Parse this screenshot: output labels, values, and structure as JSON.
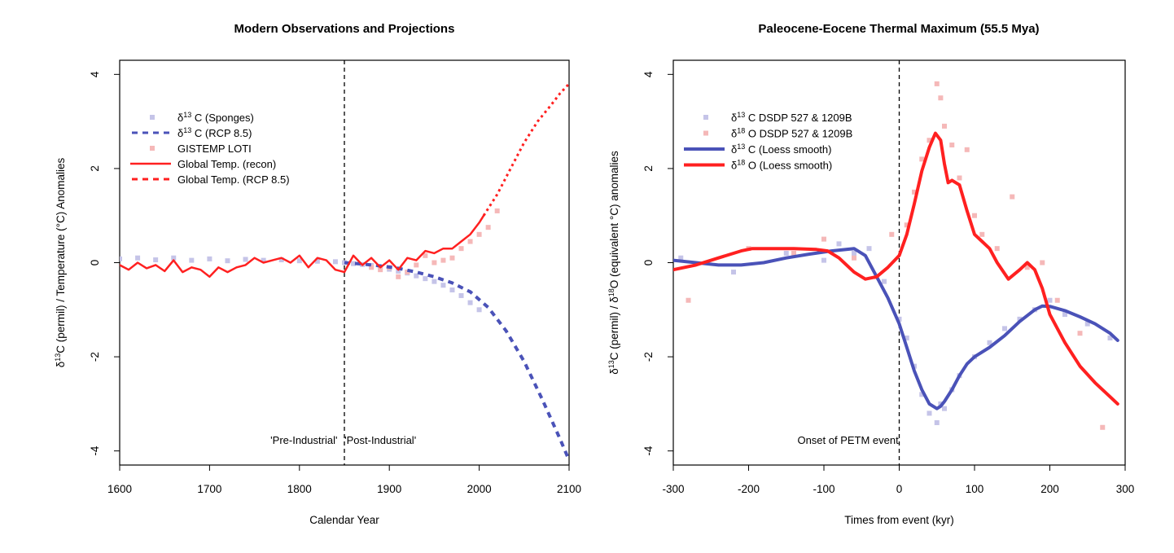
{
  "colors": {
    "red": "#ff2020",
    "light_red": "#f5b8b8",
    "blue": "#4a52b8",
    "light_blue": "#c5c4e8"
  },
  "chart_data": [
    {
      "type": "line",
      "title": "Modern Observations and Projections",
      "xlabel": "Calendar Year",
      "ylabel": "δ13C (permil) / Temperature (°C) Anomalies",
      "ylabel_parts": {
        "pre": "δ",
        "sup": "13",
        "post": "C (permil) / Temperature (°C) Anomalies"
      },
      "xlim": [
        1600,
        2100
      ],
      "ylim": [
        -4.3,
        4.3
      ],
      "xticks": [
        1600,
        1700,
        1800,
        1900,
        2000,
        2100
      ],
      "yticks": [
        -4,
        -2,
        0,
        2,
        4
      ],
      "vline": 1850,
      "annotations": [
        {
          "text": "'Pre-Industrial'",
          "x": 1805,
          "y": -3.85
        },
        {
          "text": "'Post-Industrial'",
          "x": 1890,
          "y": -3.85
        }
      ],
      "legend_position": "top-left",
      "legend": [
        {
          "pre": "δ",
          "sup": "13",
          "post": "C (Sponges)",
          "style": "points",
          "color": "#c5c4e8"
        },
        {
          "pre": "δ",
          "sup": "13",
          "post": "C (RCP 8.5)",
          "style": "dashed",
          "color": "#4a52b8"
        },
        {
          "pre": "GISTEMP LOTI",
          "sup": "",
          "post": "",
          "style": "points",
          "color": "#f5b8b8"
        },
        {
          "pre": "Global Temp. (recon)",
          "sup": "",
          "post": "",
          "style": "solid",
          "color": "#ff2020"
        },
        {
          "pre": "Global Temp. (RCP 8.5)",
          "sup": "",
          "post": "",
          "style": "dotted",
          "color": "#ff2020"
        }
      ],
      "series": [
        {
          "name": "δ13C (Sponges)",
          "style": "points",
          "color": "#c5c4e8",
          "x": [
            1600,
            1620,
            1640,
            1660,
            1680,
            1700,
            1720,
            1740,
            1760,
            1780,
            1800,
            1820,
            1840,
            1850,
            1860,
            1870,
            1880,
            1890,
            1900,
            1910,
            1920,
            1930,
            1940,
            1950,
            1960,
            1970,
            1980,
            1990,
            2000
          ],
          "y": [
            0.08,
            0.1,
            0.06,
            0.1,
            0.05,
            0.08,
            0.04,
            0.07,
            0.05,
            0.06,
            0.04,
            0.03,
            0.02,
            0.0,
            -0.02,
            -0.04,
            -0.06,
            -0.1,
            -0.14,
            -0.18,
            -0.22,
            -0.28,
            -0.34,
            -0.4,
            -0.48,
            -0.58,
            -0.7,
            -0.85,
            -1.0
          ]
        },
        {
          "name": "δ13C (RCP 8.5)",
          "style": "dashed",
          "color": "#4a52b8",
          "x": [
            1850,
            1870,
            1890,
            1910,
            1930,
            1950,
            1970,
            1990,
            2010,
            2030,
            2050,
            2070,
            2090,
            2100
          ],
          "y": [
            0.0,
            -0.03,
            -0.07,
            -0.12,
            -0.2,
            -0.3,
            -0.43,
            -0.62,
            -0.95,
            -1.45,
            -2.1,
            -2.9,
            -3.75,
            -4.2
          ]
        },
        {
          "name": "GISTEMP LOTI",
          "style": "points",
          "color": "#f5b8b8",
          "x": [
            1880,
            1890,
            1900,
            1910,
            1920,
            1930,
            1940,
            1950,
            1960,
            1970,
            1980,
            1990,
            2000,
            2010,
            2020
          ],
          "y": [
            -0.1,
            -0.15,
            -0.1,
            -0.3,
            -0.2,
            -0.05,
            0.15,
            0.0,
            0.05,
            0.1,
            0.3,
            0.45,
            0.6,
            0.75,
            1.1
          ]
        },
        {
          "name": "Global Temp. (recon)",
          "style": "solid",
          "color": "#ff2020",
          "x": [
            1600,
            1610,
            1620,
            1630,
            1640,
            1650,
            1660,
            1670,
            1680,
            1690,
            1700,
            1710,
            1720,
            1730,
            1740,
            1750,
            1760,
            1770,
            1780,
            1790,
            1800,
            1810,
            1820,
            1830,
            1840,
            1850,
            1860,
            1870,
            1880,
            1890,
            1900,
            1910,
            1920,
            1930,
            1940,
            1950,
            1960,
            1970,
            1980,
            1990,
            2000,
            2005
          ],
          "y": [
            -0.05,
            -0.15,
            0.0,
            -0.12,
            -0.05,
            -0.18,
            0.05,
            -0.2,
            -0.1,
            -0.15,
            -0.3,
            -0.1,
            -0.2,
            -0.1,
            -0.05,
            0.1,
            0.0,
            0.05,
            0.1,
            0.0,
            0.15,
            -0.1,
            0.1,
            0.05,
            -0.15,
            -0.2,
            0.15,
            -0.05,
            0.1,
            -0.1,
            0.05,
            -0.15,
            0.1,
            0.05,
            0.25,
            0.2,
            0.3,
            0.3,
            0.45,
            0.6,
            0.85,
            1.0
          ]
        },
        {
          "name": "Global Temp. (RCP 8.5)",
          "style": "dotted",
          "color": "#ff2020",
          "x": [
            2005,
            2020,
            2035,
            2050,
            2065,
            2080,
            2090,
            2100
          ],
          "y": [
            1.0,
            1.45,
            2.0,
            2.55,
            3.0,
            3.35,
            3.6,
            3.8
          ]
        }
      ]
    },
    {
      "type": "line",
      "title": "Paleocene-Eocene Thermal Maximum (55.5 Mya)",
      "xlabel": "Times from event (kyr)",
      "ylabel": "δ13C (permil) / δ18O (equivalent °C) anomalies",
      "ylabel_parts": {
        "pre": "δ",
        "sup": "13",
        "mid": "C (permil) / δ",
        "sup2": "18",
        "post": "O (equivalent °C) anomalies"
      },
      "xlim": [
        -300,
        300
      ],
      "ylim": [
        -4.3,
        4.3
      ],
      "xticks": [
        -300,
        -200,
        -100,
        0,
        100,
        200,
        300
      ],
      "yticks": [
        -4,
        -2,
        0,
        2,
        4
      ],
      "vline": 0,
      "annotations": [
        {
          "text": "Onset of PETM event",
          "x": -68,
          "y": -3.85
        }
      ],
      "legend_position": "top-left",
      "legend": [
        {
          "pre": "δ",
          "sup": "13",
          "post": "C DSDP 527 & 1209B",
          "style": "points",
          "color": "#c5c4e8"
        },
        {
          "pre": "δ",
          "sup": "18",
          "post": "O DSDP 527 & 1209B",
          "style": "points",
          "color": "#f5b8b8"
        },
        {
          "pre": "δ",
          "sup": "13",
          "post": "C (Loess smooth)",
          "style": "thick",
          "color": "#4a52b8"
        },
        {
          "pre": "δ",
          "sup": "18",
          "post": "O (Loess smooth)",
          "style": "thick",
          "color": "#ff2020"
        }
      ],
      "series": [
        {
          "name": "δ13C DSDP 527 & 1209B",
          "style": "points",
          "color": "#c5c4e8",
          "x": [
            -290,
            -220,
            -150,
            -100,
            -80,
            -60,
            -40,
            -20,
            0,
            10,
            20,
            30,
            40,
            50,
            55,
            60,
            70,
            80,
            100,
            120,
            140,
            160,
            180,
            200,
            220,
            250,
            280
          ],
          "y": [
            0.1,
            -0.2,
            0.2,
            0.05,
            0.4,
            0.2,
            0.3,
            -0.4,
            -1.2,
            -1.6,
            -2.2,
            -2.8,
            -3.2,
            -3.4,
            -3.0,
            -3.1,
            -2.7,
            -2.4,
            -2.0,
            -1.7,
            -1.4,
            -1.2,
            -1.0,
            -0.8,
            -1.1,
            -1.3,
            -1.6
          ]
        },
        {
          "name": "δ18O DSDP 527 & 1209B",
          "style": "points",
          "color": "#f5b8b8",
          "x": [
            -280,
            -200,
            -140,
            -100,
            -60,
            -30,
            -10,
            10,
            20,
            30,
            40,
            50,
            55,
            60,
            70,
            80,
            90,
            100,
            110,
            130,
            150,
            170,
            190,
            210,
            240,
            270
          ],
          "y": [
            -0.8,
            0.3,
            0.2,
            0.5,
            0.1,
            -0.3,
            0.6,
            0.8,
            1.5,
            2.2,
            2.6,
            3.8,
            3.5,
            2.9,
            2.5,
            1.8,
            2.4,
            1.0,
            0.6,
            0.3,
            1.4,
            -0.1,
            0.0,
            -0.8,
            -1.5,
            -3.5
          ]
        },
        {
          "name": "δ13C (Loess smooth)",
          "style": "thick",
          "color": "#4a52b8",
          "x": [
            -300,
            -270,
            -240,
            -210,
            -180,
            -150,
            -120,
            -90,
            -60,
            -45,
            -30,
            -15,
            0,
            10,
            20,
            30,
            40,
            50,
            55,
            60,
            70,
            80,
            90,
            100,
            120,
            140,
            160,
            180,
            190,
            200,
            220,
            240,
            260,
            280,
            290
          ],
          "y": [
            0.05,
            0.0,
            -0.05,
            -0.05,
            0.0,
            0.1,
            0.18,
            0.25,
            0.3,
            0.15,
            -0.3,
            -0.75,
            -1.3,
            -1.8,
            -2.3,
            -2.7,
            -3.0,
            -3.1,
            -3.05,
            -2.95,
            -2.7,
            -2.4,
            -2.15,
            -2.0,
            -1.8,
            -1.55,
            -1.25,
            -1.0,
            -0.92,
            -0.93,
            -1.02,
            -1.15,
            -1.3,
            -1.5,
            -1.65
          ]
        },
        {
          "name": "δ18O (Loess smooth)",
          "style": "thick",
          "color": "#ff2020",
          "x": [
            -300,
            -270,
            -240,
            -210,
            -195,
            -170,
            -140,
            -110,
            -95,
            -80,
            -60,
            -45,
            -30,
            -15,
            0,
            10,
            20,
            30,
            40,
            48,
            55,
            60,
            65,
            70,
            80,
            90,
            100,
            110,
            120,
            130,
            145,
            160,
            170,
            180,
            190,
            200,
            220,
            240,
            260,
            280,
            290
          ],
          "y": [
            -0.15,
            -0.05,
            0.1,
            0.25,
            0.3,
            0.3,
            0.3,
            0.28,
            0.25,
            0.1,
            -0.2,
            -0.35,
            -0.3,
            -0.1,
            0.15,
            0.6,
            1.25,
            1.95,
            2.45,
            2.75,
            2.6,
            2.1,
            1.7,
            1.75,
            1.65,
            1.1,
            0.6,
            0.45,
            0.3,
            0.0,
            -0.35,
            -0.15,
            0.0,
            -0.15,
            -0.55,
            -1.1,
            -1.7,
            -2.2,
            -2.55,
            -2.85,
            -3.0
          ]
        }
      ]
    }
  ]
}
